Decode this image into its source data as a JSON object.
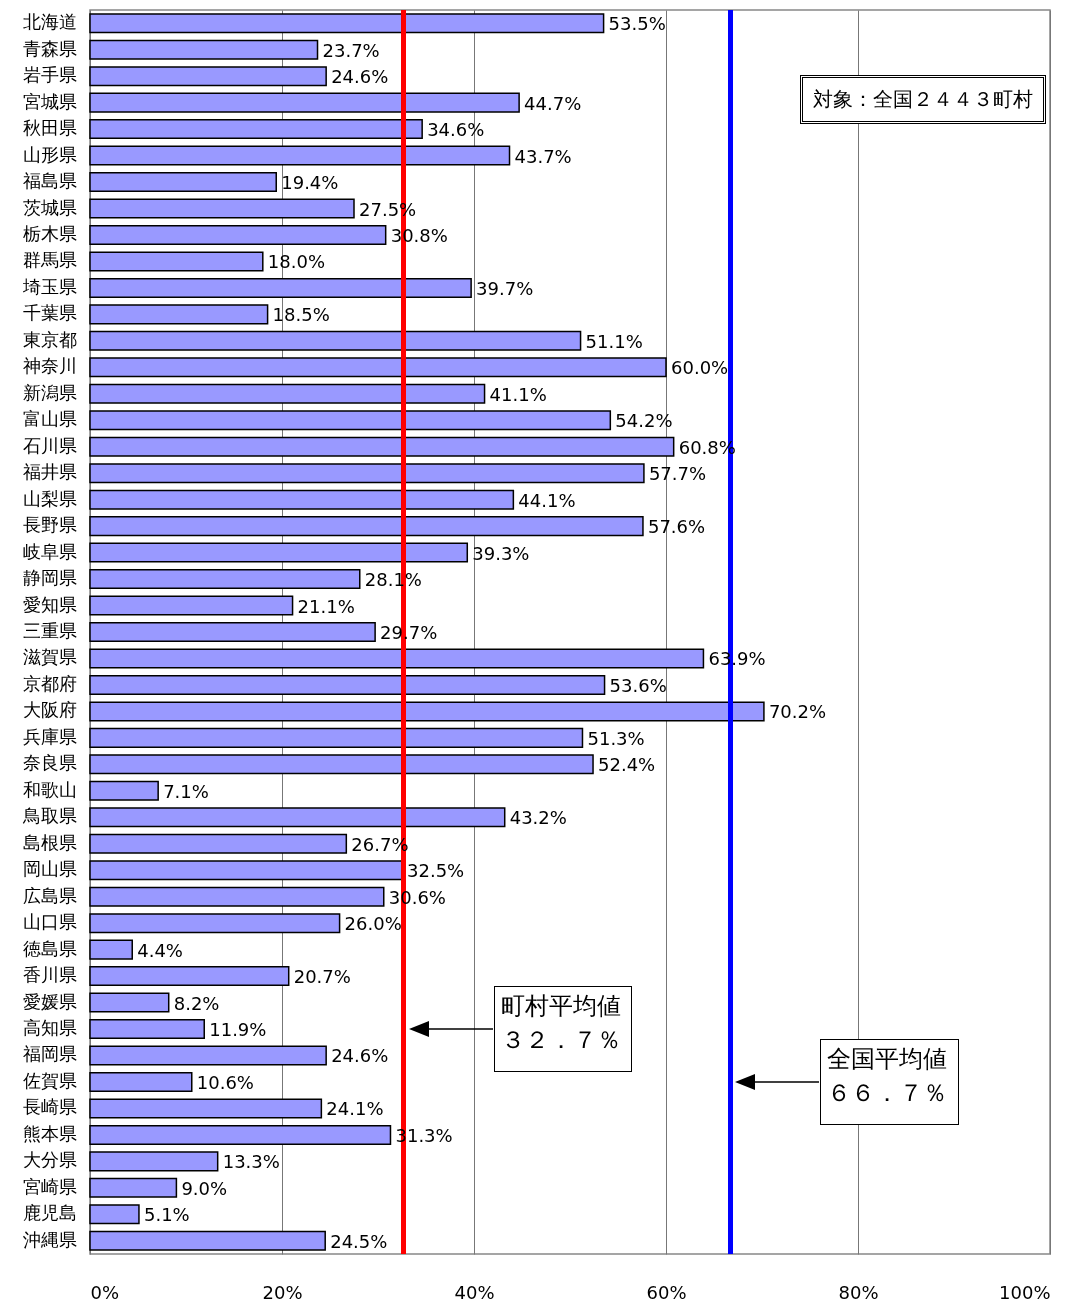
{
  "chart_data": {
    "type": "bar",
    "orientation": "horizontal",
    "categories": [
      "北海道",
      "青森県",
      "岩手県",
      "宮城県",
      "秋田県",
      "山形県",
      "福島県",
      "茨城県",
      "栃木県",
      "群馬県",
      "埼玉県",
      "千葉県",
      "東京都",
      "神奈川",
      "新潟県",
      "富山県",
      "石川県",
      "福井県",
      "山梨県",
      "長野県",
      "岐阜県",
      "静岡県",
      "愛知県",
      "三重県",
      "滋賀県",
      "京都府",
      "大阪府",
      "兵庫県",
      "奈良県",
      "和歌山",
      "鳥取県",
      "島根県",
      "岡山県",
      "広島県",
      "山口県",
      "徳島県",
      "香川県",
      "愛媛県",
      "高知県",
      "福岡県",
      "佐賀県",
      "長崎県",
      "熊本県",
      "大分県",
      "宮崎県",
      "鹿児島",
      "沖縄県"
    ],
    "values": [
      53.5,
      23.7,
      24.6,
      44.7,
      34.6,
      43.7,
      19.4,
      27.5,
      30.8,
      18.0,
      39.7,
      18.5,
      51.1,
      60.0,
      41.1,
      54.2,
      60.8,
      57.7,
      44.1,
      57.6,
      39.3,
      28.1,
      21.1,
      29.7,
      63.9,
      53.6,
      70.2,
      51.3,
      52.4,
      7.1,
      43.2,
      26.7,
      32.5,
      30.6,
      26.0,
      4.4,
      20.7,
      8.2,
      11.9,
      24.6,
      10.6,
      24.1,
      31.3,
      13.3,
      9.0,
      5.1,
      24.5
    ],
    "value_labels": [
      "53.5%",
      "23.7%",
      "24.6%",
      "44.7%",
      "34.6%",
      "43.7%",
      "19.4%",
      "27.5%",
      "30.8%",
      "18.0%",
      "39.7%",
      "18.5%",
      "51.1%",
      "60.0%",
      "41.1%",
      "54.2%",
      "60.8%",
      "57.7%",
      "44.1%",
      "57.6%",
      "39.3%",
      "28.1%",
      "21.1%",
      "29.7%",
      "63.9%",
      "53.6%",
      "70.2%",
      "51.3%",
      "52.4%",
      "7.1%",
      "43.2%",
      "26.7%",
      "32.5%",
      "30.6%",
      "26.0%",
      "4.4%",
      "20.7%",
      "8.2%",
      "11.9%",
      "24.6%",
      "10.6%",
      "24.1%",
      "31.3%",
      "13.3%",
      "9.0%",
      "5.1%",
      "24.5%"
    ],
    "color": "#9999ff",
    "xlim": [
      0,
      100
    ],
    "xticks": [
      {
        "value": 0,
        "label": "0%"
      },
      {
        "value": 20,
        "label": "20%"
      },
      {
        "value": 40,
        "label": "40%"
      },
      {
        "value": 60,
        "label": "60%"
      },
      {
        "value": 80,
        "label": "80%"
      },
      {
        "value": 100,
        "label": "100%"
      }
    ],
    "grid": "x",
    "ref_lines": [
      {
        "axis": "x",
        "value": 32.7,
        "color": "#ff0000"
      },
      {
        "axis": "x",
        "value": 66.7,
        "color": "#0000ff"
      }
    ],
    "annotations": [
      "町村平均値３２．７％",
      "全国平均値６６．７％",
      "対象：全国２４４３町村"
    ]
  }
}
